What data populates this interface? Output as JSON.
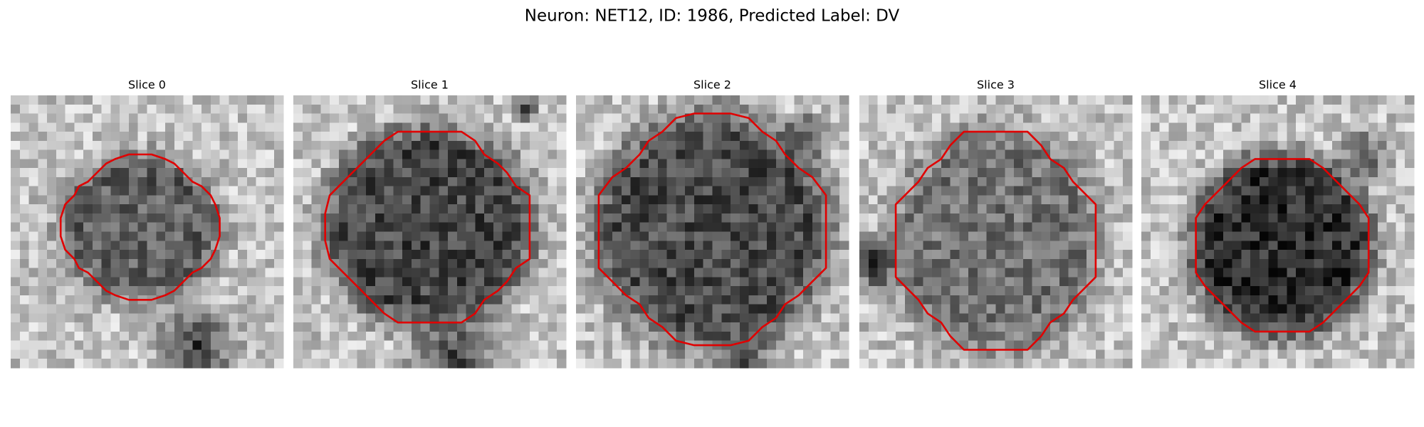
{
  "header": {
    "title": "Neuron: NET12, ID: 1986, Predicted Label: DV"
  },
  "panels": [
    {
      "title": "Slice 0"
    },
    {
      "title": "Slice 1"
    },
    {
      "title": "Slice 2"
    },
    {
      "title": "Slice 3"
    },
    {
      "title": "Slice 4"
    }
  ]
}
